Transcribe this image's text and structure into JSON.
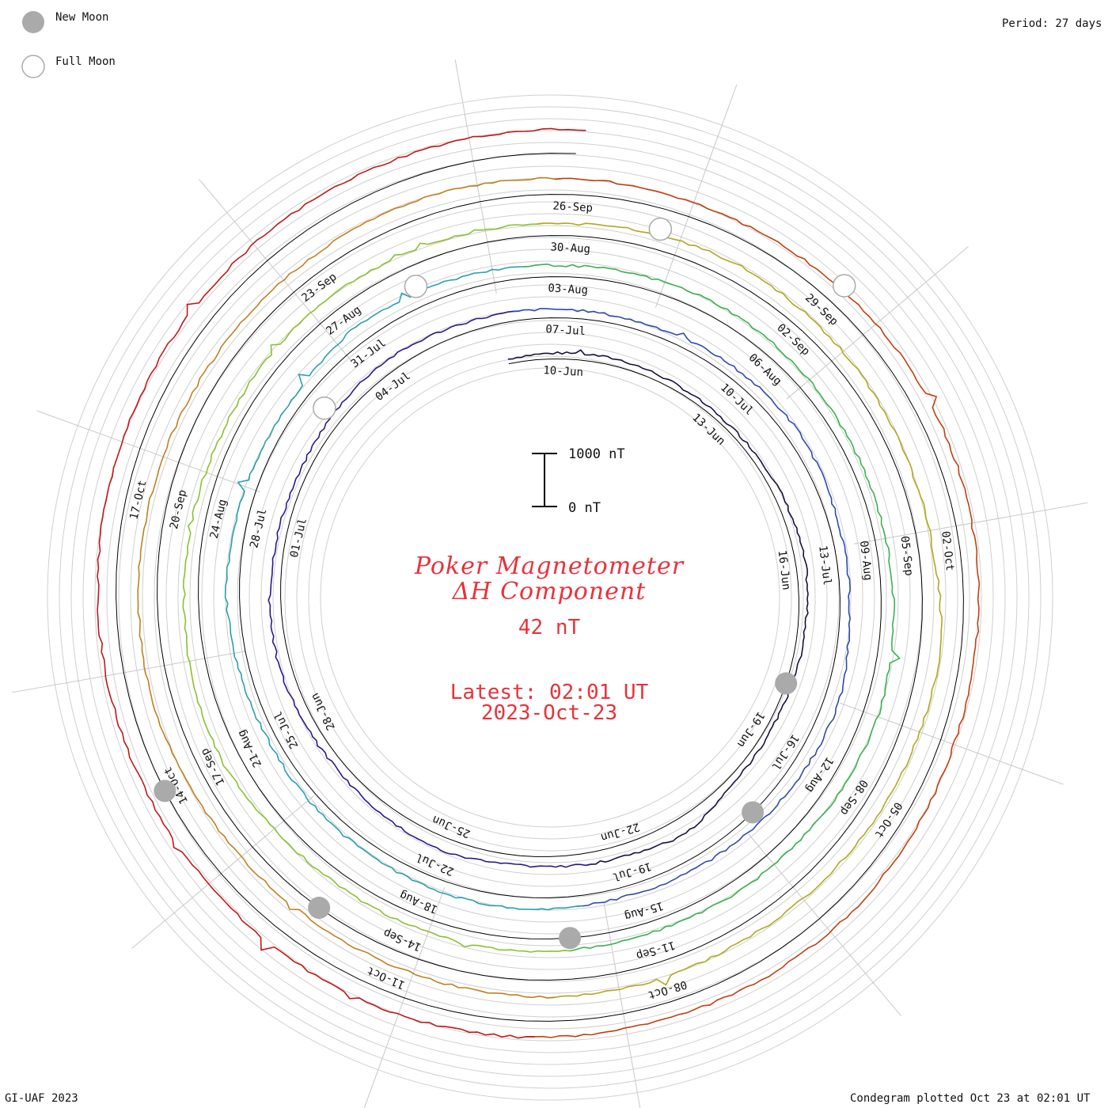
{
  "legend": {
    "new_moon_label": "New Moon",
    "full_moon_label": "Full Moon",
    "colors": {
      "new_moon": "#aaaaaa",
      "full_moon_stroke": "#aaaaaa"
    }
  },
  "header": {
    "period": "Period: 27 days"
  },
  "footer": {
    "credit": "GI-UAF 2023",
    "plotted": "Condegram plotted Oct 23 at 02:01 UT"
  },
  "center": {
    "title_line1": "Poker Magnetometer",
    "title_line2": "ΔH Component",
    "current_value": "42 nT",
    "latest_line1": "Latest: 02:01 UT",
    "latest_line2": "2023-Oct-23"
  },
  "chart_data": {
    "type": "line",
    "layout": "spiral condegram",
    "period_days": 27,
    "start_date": "2023-06-09",
    "end_date": "2023-10-23",
    "units": "nT",
    "scale_bar": {
      "label_top": "1000 nT",
      "label_bottom": "0 nT"
    },
    "date_labels": [
      "10-Jun",
      "13-Jun",
      "16-Jun",
      "19-Jun",
      "22-Jun",
      "25-Jun",
      "28-Jun",
      "01-Jul",
      "04-Jul",
      "07-Jul",
      "10-Jul",
      "13-Jul",
      "16-Jul",
      "19-Jul",
      "22-Jul",
      "25-Jul",
      "28-Jul",
      "31-Jul",
      "03-Aug",
      "06-Aug",
      "09-Aug",
      "12-Aug",
      "15-Aug",
      "18-Aug",
      "21-Aug",
      "24-Aug",
      "27-Aug",
      "30-Aug",
      "02-Sep",
      "05-Sep",
      "08-Sep",
      "11-Sep",
      "14-Sep",
      "17-Sep",
      "20-Sep",
      "23-Sep",
      "26-Sep",
      "29-Sep",
      "02-Oct",
      "05-Oct",
      "08-Oct",
      "11-Oct",
      "14-Oct",
      "17-Oct"
    ],
    "new_moons": [
      "2023-06-18",
      "2023-07-17",
      "2023-08-16",
      "2023-09-15",
      "2023-10-14"
    ],
    "full_moons": [
      "2023-07-03",
      "2023-08-01",
      "2023-08-31",
      "2023-09-29"
    ],
    "series_colors": [
      "#1a1040",
      "#2a1a8a",
      "#2f4ab0",
      "#2aa0b0",
      "#3cb050",
      "#8cc030",
      "#b0a820",
      "#c08020",
      "#c04010",
      "#c01818"
    ],
    "daily_values": [
      120,
      150,
      180,
      140,
      110,
      160,
      200,
      240,
      190,
      150,
      130,
      170,
      420,
      310,
      260,
      230,
      350,
      280,
      210,
      240,
      300,
      260,
      220,
      180,
      250,
      310,
      270,
      230,
      210,
      190,
      240,
      280,
      320,
      260,
      230,
      250,
      380,
      340,
      300,
      270,
      240,
      260,
      300,
      280,
      250,
      230,
      210,
      260,
      330,
      290,
      250,
      270,
      400,
      360,
      320,
      280,
      300,
      340,
      310,
      270,
      250,
      280,
      330,
      390,
      350,
      300,
      280,
      260,
      300,
      340,
      310,
      290,
      320,
      450,
      410,
      360,
      330,
      300,
      350,
      380,
      340,
      320,
      300,
      360,
      420,
      380,
      350,
      330,
      360,
      520,
      480,
      430,
      390,
      360,
      400,
      430,
      410,
      380,
      360,
      390,
      440,
      500,
      470,
      430,
      400,
      380,
      410,
      450,
      430,
      400,
      380,
      360,
      400,
      440,
      420,
      390,
      370,
      360,
      390,
      430,
      410,
      380,
      400,
      420,
      450,
      430,
      410,
      420,
      440,
      460
    ]
  }
}
